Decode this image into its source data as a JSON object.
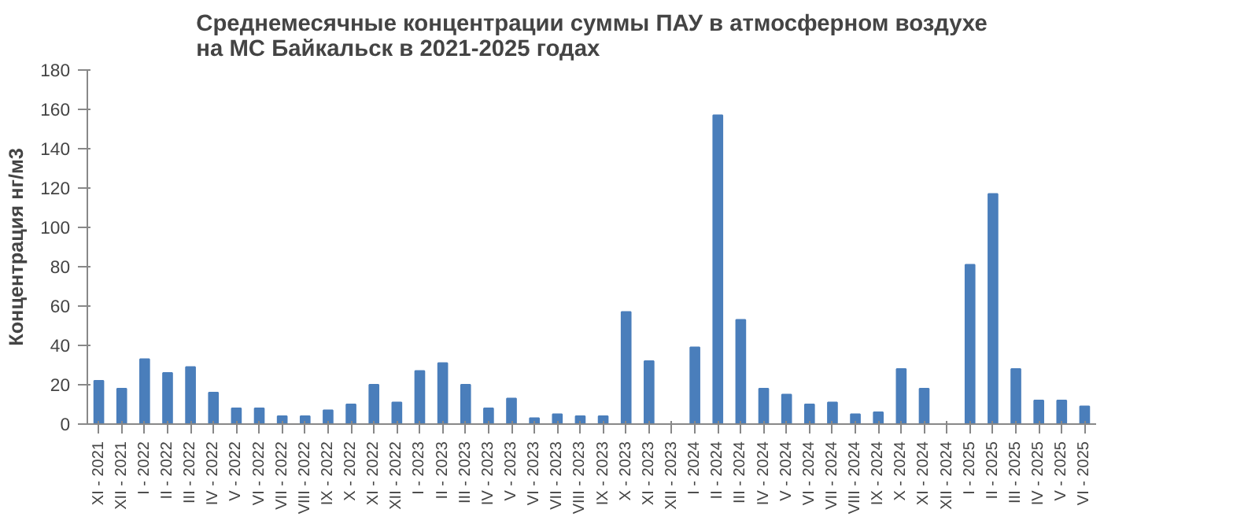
{
  "chart_data": {
    "type": "bar",
    "title": "Среднемесячные концентрации суммы ПАУ в атмосферном воздухе\nна МС Байкальск в 2021-2025 годах",
    "ylabel": "Концентрация нг/м3",
    "categories": [
      "XI - 2021",
      "XII - 2021",
      "I - 2022",
      "II - 2022",
      "III - 2022",
      "IV - 2022",
      "V - 2022",
      "VI - 2022",
      "VII - 2022",
      "VIII - 2022",
      "IX - 2022",
      "X - 2022",
      "XI - 2022",
      "XII - 2022",
      "I - 2023",
      "II - 2023",
      "III - 2023",
      "IV - 2023",
      "V - 2023",
      "VI - 2023",
      "VII - 2023",
      "VIII - 2023",
      "IX - 2023",
      "X - 2023",
      "XI - 2023",
      "XII - 2023",
      "I - 2024",
      "II - 2024",
      "III - 2024",
      "IV - 2024",
      "V - 2024",
      "VI - 2024",
      "VII - 2024",
      "VIII - 2024",
      "IX - 2024",
      "X - 2024",
      "XI - 2024",
      "XII - 2024",
      "I - 2025",
      "II - 2025",
      "III - 2025",
      "IV - 2025",
      "V - 2025",
      "VI - 2025"
    ],
    "values": [
      22,
      18,
      33,
      26,
      29,
      16,
      8,
      8,
      4,
      4,
      7,
      10,
      20,
      11,
      27,
      31,
      20,
      8,
      13,
      3,
      5,
      4,
      4,
      57,
      32,
      null,
      39,
      157,
      53,
      18,
      15,
      10,
      11,
      5,
      6,
      28,
      18,
      null,
      81,
      117,
      28,
      12,
      12,
      9
    ],
    "color": "#4a7ebb",
    "ylim": [
      0,
      180
    ],
    "yticks": [
      0,
      20,
      40,
      60,
      80,
      100,
      120,
      140,
      160,
      180
    ],
    "grid": false
  }
}
